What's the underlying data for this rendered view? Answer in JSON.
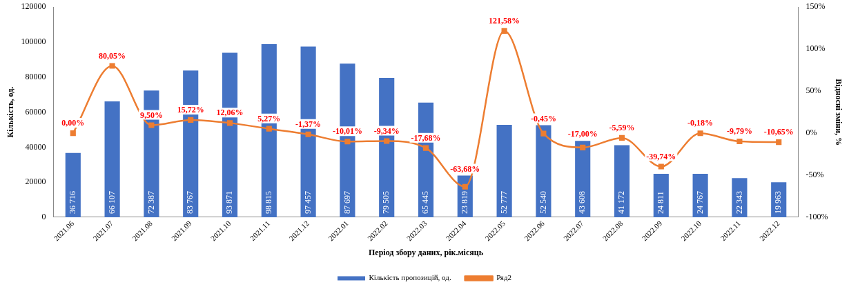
{
  "chart_data": {
    "type": "bar",
    "xlabel": "Період збору даних, рік.місяць",
    "ylabel": "Кількість, од.",
    "y2label": "Відносні зміни, %",
    "categories": [
      "2021.06",
      "2021.07",
      "2021.08",
      "2021.09",
      "2021.10",
      "2021.11",
      "2021.12",
      "2022.01",
      "2022.02",
      "2022.03",
      "2022.04",
      "2022.05",
      "2022.06",
      "2022.07",
      "2022.08",
      "2022.09",
      "2022.10",
      "2022.11",
      "2022.12"
    ],
    "series": [
      {
        "name": "Кількість пропозицій, од.",
        "type": "bar",
        "color": "#4472c4",
        "values": [
          36716,
          66107,
          72387,
          83767,
          93871,
          98815,
          97457,
          87697,
          79505,
          65445,
          23819,
          52777,
          52540,
          43608,
          41172,
          24811,
          24767,
          22343,
          19963
        ],
        "value_labels": [
          "36 716",
          "66 107",
          "72 387",
          "83 767",
          "93 871",
          "98 815",
          "97 457",
          "87 697",
          "79 505",
          "65 445",
          "23 819",
          "52 777",
          "52 540",
          "43 608",
          "41 172",
          "24 811",
          "24 767",
          "22 343",
          "19 963"
        ]
      },
      {
        "name": "Ряд2",
        "type": "line",
        "axis": "y2",
        "color": "#ed7d31",
        "marker": "square",
        "line_style": "solid",
        "values": [
          0,
          80.05,
          9.5,
          15.72,
          12.06,
          5.27,
          -1.37,
          -10.01,
          -9.34,
          -17.68,
          -63.68,
          121.58,
          -0.45,
          -17,
          -5.59,
          -39.74,
          -0.18,
          -9.79,
          -10.65
        ],
        "value_labels": [
          "0,00%",
          "80,05%",
          "9,50%",
          "15,72%",
          "12,06%",
          "5,27%",
          "-1,37%",
          "-10,01%",
          "-9,34%",
          "-17,68%",
          "-63,68%",
          "121,58%",
          "-0,45%",
          "-17,00%",
          "-5,59%",
          "-39,74%",
          "-0,18%",
          "-9,79%",
          "-10,65%"
        ]
      }
    ],
    "ylim": [
      0,
      120000
    ],
    "yticks": [
      0,
      20000,
      40000,
      60000,
      80000,
      100000,
      120000
    ],
    "y2lim": [
      -100,
      150
    ],
    "y2ticks": [
      {
        "value": -100,
        "label": "-100%"
      },
      {
        "value": -50,
        "label": "-50%"
      },
      {
        "value": 0,
        "label": "0%"
      },
      {
        "value": 50,
        "label": "50%"
      },
      {
        "value": 100,
        "label": "100%"
      },
      {
        "value": 150,
        "label": "150%"
      }
    ],
    "grid": false,
    "legend": "bottom"
  }
}
